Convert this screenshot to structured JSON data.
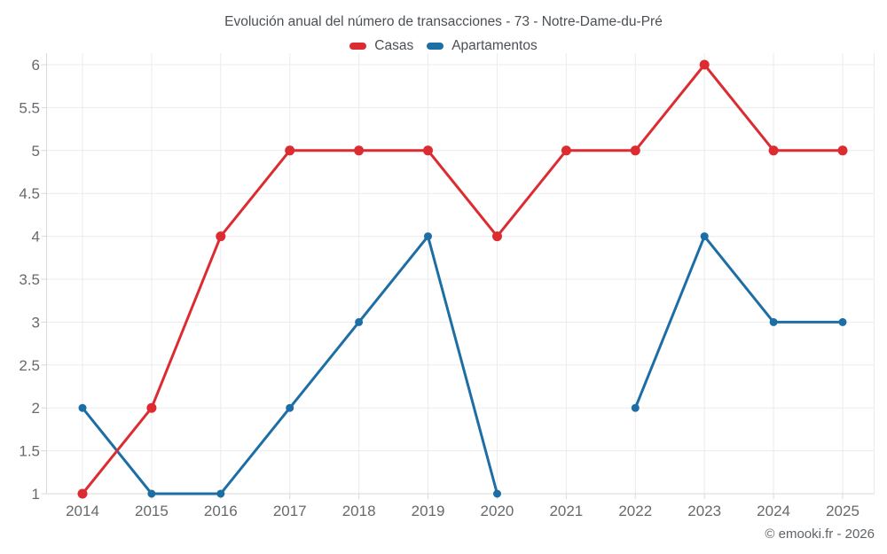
{
  "page": {
    "copyright": "© emooki.fr - 2026"
  },
  "chart_data": {
    "type": "line",
    "title": "Evolución anual del número de transacciones - 73 - Notre-Dame-du-Pré",
    "categories": [
      "2014",
      "2015",
      "2016",
      "2017",
      "2018",
      "2019",
      "2020",
      "2021",
      "2022",
      "2023",
      "2024",
      "2025"
    ],
    "series": [
      {
        "name": "Casas",
        "color": "#dc2c31",
        "values": [
          1,
          2,
          4,
          5,
          5,
          5,
          4,
          5,
          5,
          6,
          5,
          5
        ]
      },
      {
        "name": "Apartamentos",
        "color": "#1c6ea4",
        "values": [
          2,
          1,
          1,
          2,
          3,
          4,
          1,
          null,
          2,
          4,
          3,
          3
        ]
      }
    ],
    "xlabel": "",
    "ylabel": "",
    "ylim": [
      1,
      6
    ],
    "yticks": [
      1,
      1.5,
      2,
      2.5,
      3,
      3.5,
      4,
      4.5,
      5,
      5.5,
      6
    ],
    "grid": true,
    "legend_position": "top"
  }
}
